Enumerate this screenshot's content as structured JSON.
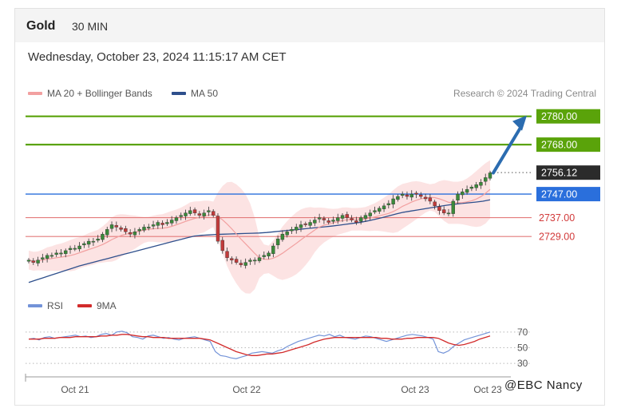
{
  "header": {
    "title": "Gold",
    "interval": "30 MIN"
  },
  "timestamp": "Wednesday, October 23, 2024 11:15:17 AM CET",
  "credit": "Research © 2024 Trading Central",
  "watermark": "@EBC Nancy",
  "colors": {
    "ma20": "#f2a0a0",
    "ma50": "#2e4f8c",
    "band": "#fcdede",
    "resistance": "#5aa30a",
    "current": "#2b2b2b",
    "support_blue": "#2a6fdc",
    "support_red": "#e37b7b",
    "candle_up": "#3a8a3a",
    "candle_down": "#c23a3a",
    "rsi": "#7393d8",
    "ma9": "#d22b2b",
    "arrow": "#2b6cb0"
  },
  "chart_data": [
    {
      "type": "candlestick",
      "instrument": "Gold",
      "interval": "30 MIN",
      "legend": [
        "MA 20 + Bollinger Bands",
        "MA 50"
      ],
      "ylim": [
        2704,
        2786
      ],
      "x_ticks": [
        "Oct 21",
        "Oct 22",
        "Oct 23",
        "Oct 23"
      ],
      "levels": [
        {
          "label": "2780.00",
          "value": 2780.0,
          "kind": "resistance"
        },
        {
          "label": "2768.00",
          "value": 2768.0,
          "kind": "resistance"
        },
        {
          "label": "2756.12",
          "value": 2756.12,
          "kind": "current"
        },
        {
          "label": "2747.00",
          "value": 2747.0,
          "kind": "support_blue"
        },
        {
          "label": "2737.00",
          "value": 2737.0,
          "kind": "support_red"
        },
        {
          "label": "2729.00",
          "value": 2729.0,
          "kind": "support_red"
        }
      ],
      "close": [
        2719,
        2718,
        2719,
        2720,
        2721,
        2721,
        2722,
        2722,
        2723,
        2724,
        2724,
        2725,
        2726,
        2727,
        2727,
        2728,
        2730,
        2732,
        2734,
        2733,
        2732,
        2731,
        2730,
        2731,
        2732,
        2733,
        2733,
        2734,
        2735,
        2734,
        2735,
        2736,
        2737,
        2738,
        2739,
        2740,
        2739,
        2738,
        2739,
        2740,
        2738,
        2727,
        2723,
        2720,
        2719,
        2718,
        2717,
        2718,
        2719,
        2719,
        2720,
        2721,
        2722,
        2725,
        2728,
        2730,
        2731,
        2732,
        2733,
        2734,
        2734,
        2735,
        2736,
        2737,
        2736,
        2735,
        2736,
        2737,
        2738,
        2737,
        2736,
        2735,
        2737,
        2738,
        2739,
        2740,
        2741,
        2742,
        2743,
        2745,
        2746,
        2747,
        2746,
        2747,
        2747,
        2746,
        2745,
        2744,
        2742,
        2740,
        2739,
        2739,
        2744,
        2747,
        2748,
        2749,
        2750,
        2751,
        2752,
        2754,
        2756
      ],
      "ma50": [
        2709.5,
        2710.5,
        2711.5,
        2712.5,
        2713.5,
        2714.5,
        2715.5,
        2716.5,
        2717.3,
        2718.1,
        2718.9,
        2719.7,
        2720.5,
        2721.3,
        2722.1,
        2722.9,
        2723.7,
        2724.5,
        2725.3,
        2726.1,
        2726.9,
        2727.7,
        2728.5,
        2729.2,
        2729.5,
        2729.7,
        2729.9,
        2730.0,
        2730.1,
        2730.2,
        2730.3,
        2730.4,
        2730.5,
        2730.7,
        2731.0,
        2731.3,
        2731.6,
        2731.9,
        2732.2,
        2732.5,
        2732.8,
        2733.1,
        2733.4,
        2733.8,
        2734.2,
        2734.6,
        2735.0,
        2735.6,
        2736.3,
        2737.0,
        2737.8,
        2738.6,
        2739.3,
        2739.8,
        2740.3,
        2740.8,
        2741.3,
        2741.8,
        2742.3,
        2742.7,
        2743.0,
        2743.3,
        2743.6,
        2744.0,
        2744.6
      ],
      "rsi": {
        "ylim": [
          25,
          78
        ],
        "ticks": [
          70,
          50,
          30
        ],
        "legend": [
          "RSI",
          "9MA"
        ],
        "rsi": [
          61,
          62,
          60,
          63,
          64,
          62,
          63,
          64,
          65,
          66,
          64,
          65,
          63,
          64,
          67,
          68,
          66,
          70,
          71,
          69,
          64,
          63,
          61,
          65,
          66,
          64,
          62,
          63,
          61,
          60,
          62,
          63,
          64,
          62,
          60,
          58,
          45,
          40,
          39,
          37,
          36,
          38,
          40,
          43,
          44,
          45,
          44,
          43,
          46,
          48,
          52,
          55,
          58,
          60,
          62,
          64,
          66,
          65,
          67,
          64,
          66,
          63,
          62,
          61,
          63,
          65,
          64,
          62,
          60,
          58,
          60,
          62,
          64,
          66,
          67,
          66,
          65,
          63,
          61,
          45,
          43,
          46,
          52,
          56,
          60,
          62,
          64,
          66,
          68,
          70
        ],
        "ma9": [
          61,
          61,
          61,
          62,
          62,
          62,
          63,
          63,
          63,
          64,
          64,
          64,
          64,
          64,
          65,
          65,
          66,
          66,
          67,
          67,
          66,
          65,
          64,
          64,
          63,
          63,
          63,
          62,
          62,
          62,
          62,
          62,
          62,
          62,
          61,
          60,
          57,
          54,
          51,
          48,
          45,
          43,
          41,
          40,
          40,
          41,
          42,
          42,
          43,
          44,
          46,
          48,
          50,
          52,
          54,
          57,
          59,
          61,
          62,
          63,
          63,
          63,
          63,
          63,
          63,
          63,
          63,
          63,
          62,
          62,
          61,
          61,
          61,
          62,
          62,
          63,
          63,
          63,
          63,
          62,
          59,
          56,
          54,
          53,
          54,
          56,
          58,
          61,
          63,
          65
        ]
      }
    }
  ]
}
